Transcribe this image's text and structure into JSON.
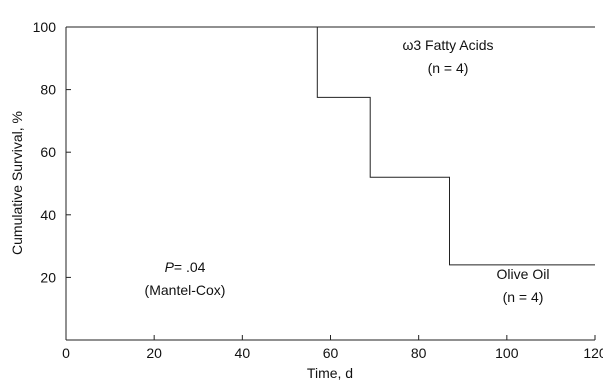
{
  "chart_data": {
    "type": "line",
    "step": true,
    "xlabel": "Time, d",
    "ylabel": "Cumulative Survival, %",
    "xlim": [
      0,
      120
    ],
    "ylim": [
      0,
      100
    ],
    "xticks": [
      0,
      20,
      40,
      60,
      80,
      100,
      120
    ],
    "yticks": [
      20,
      40,
      60,
      80,
      100
    ],
    "grid": false,
    "series": [
      {
        "name": "ω3 Fatty Acids",
        "x": [
          0,
          120
        ],
        "y": [
          100,
          100
        ]
      },
      {
        "name": "Olive Oil",
        "x": [
          0,
          57,
          57,
          69,
          69,
          87,
          87,
          120
        ],
        "y": [
          100,
          100,
          77.5,
          77.5,
          52,
          52,
          24,
          24
        ]
      }
    ],
    "annotations": [
      {
        "id": "omega-label",
        "lines": [
          "ω3 Fatty Acids",
          "(n = 4)"
        ]
      },
      {
        "id": "olive-label",
        "lines": [
          "Olive Oil",
          "(n = 4)"
        ]
      },
      {
        "id": "p-value",
        "p_prefix": "P",
        "p_value": "= .04",
        "lines": [
          "(Mantel-Cox)"
        ]
      }
    ]
  }
}
